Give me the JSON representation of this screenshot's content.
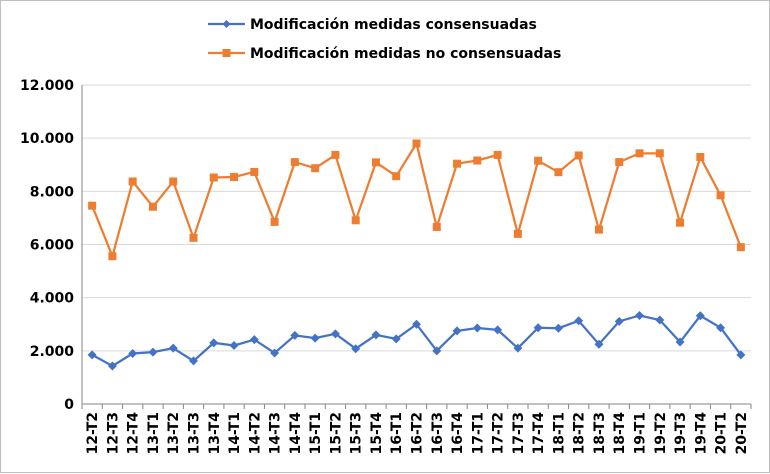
{
  "chart_data": {
    "type": "line",
    "title": "",
    "xlabel": "",
    "ylabel": "",
    "ylim": [
      0,
      12000
    ],
    "yticks": [
      "0",
      "2.000",
      "4.000",
      "6.000",
      "8.000",
      "10.000",
      "12.000"
    ],
    "grid": true,
    "legend_position": "top",
    "categories": [
      "12-T2",
      "12-T3",
      "12-T4",
      "13-T1",
      "13-T2",
      "13-T3",
      "13-T4",
      "14-T1",
      "14-T2",
      "14-T3",
      "14-T4",
      "15-T1",
      "15-T2",
      "15-T3",
      "15-T4",
      "16-T1",
      "16-T2",
      "16-T3",
      "16-T4",
      "17-T1",
      "17-T2",
      "17-T3",
      "17-T4",
      "18-T1",
      "18-T2",
      "18-T3",
      "18-T4",
      "19-T1",
      "19-T2",
      "19-T3",
      "19-T4",
      "20-T1",
      "20-T2"
    ],
    "series": [
      {
        "name": "Modificación medidas consensuadas",
        "color": "#4472c4",
        "marker": "diamond",
        "values": [
          1850,
          1430,
          1900,
          1950,
          2100,
          1620,
          2300,
          2200,
          2420,
          1920,
          2580,
          2480,
          2640,
          2080,
          2600,
          2450,
          3000,
          2000,
          2750,
          2860,
          2790,
          2100,
          2870,
          2850,
          3130,
          2250,
          3110,
          3330,
          3160,
          2330,
          3320,
          2870,
          1850
        ]
      },
      {
        "name": "Modificación medidas no consensuadas",
        "color": "#ed7d31",
        "marker": "square",
        "values": [
          7460,
          5560,
          8370,
          7420,
          8370,
          6250,
          8520,
          8540,
          8730,
          6850,
          9100,
          8870,
          9370,
          6910,
          9090,
          8570,
          9800,
          6660,
          9040,
          9160,
          9370,
          6400,
          9150,
          8720,
          9350,
          6560,
          9100,
          9430,
          9430,
          6820,
          9290,
          7850,
          5900
        ]
      }
    ]
  }
}
